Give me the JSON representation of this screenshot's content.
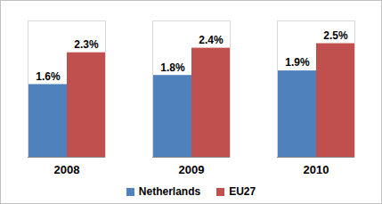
{
  "chart_data": {
    "type": "bar",
    "categories": [
      "2008",
      "2009",
      "2010"
    ],
    "series": [
      {
        "name": "Netherlands",
        "color": "#4f81bd",
        "values": [
          1.6,
          1.8,
          1.9
        ],
        "value_labels": [
          "1.6%",
          "1.8%",
          "1.9%"
        ]
      },
      {
        "name": "EU27",
        "color": "#c0504d",
        "values": [
          2.3,
          2.4,
          2.5
        ],
        "value_labels": [
          "2.3%",
          "2.4%",
          "2.5%"
        ]
      }
    ],
    "ylim": [
      0,
      3
    ],
    "data_labels": true,
    "legend": "bottom",
    "tick_labels": "x"
  }
}
